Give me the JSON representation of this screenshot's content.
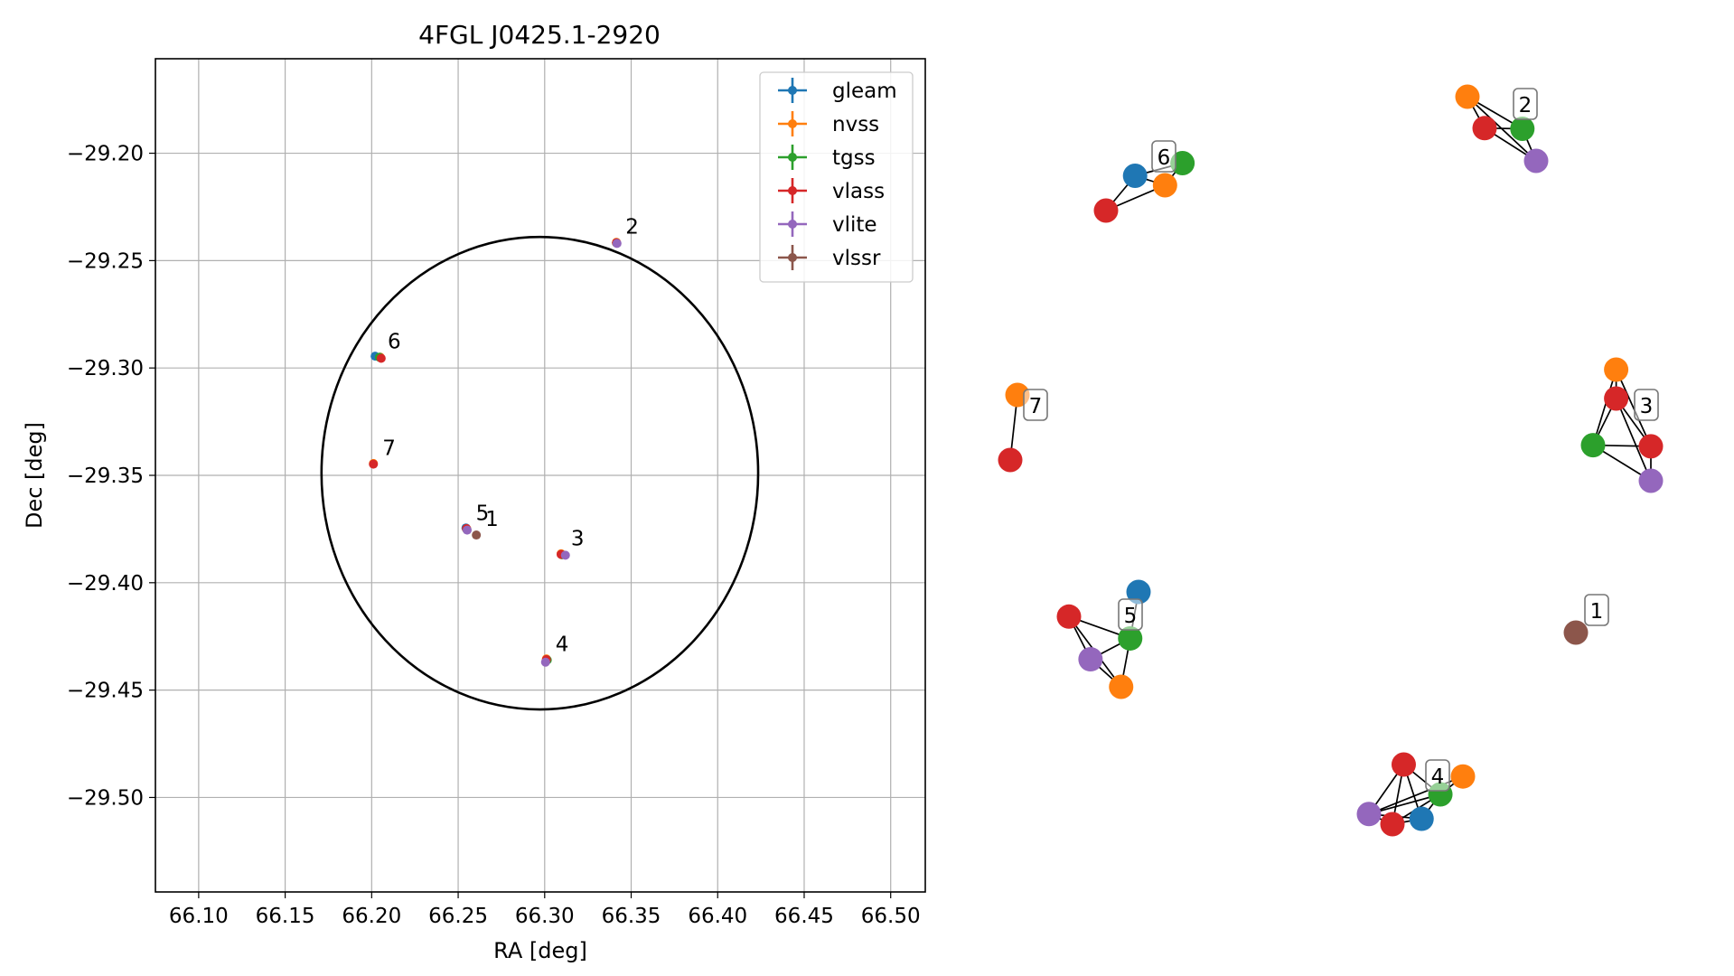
{
  "chart_data": [
    {
      "type": "scatter",
      "title": "4FGL J0425.1-2920",
      "xlabel": "RA [deg]",
      "ylabel": "Dec [deg]",
      "xlim": [
        66.075,
        66.52
      ],
      "ylim": [
        -29.544,
        -29.156
      ],
      "x_ticks": [
        66.1,
        66.15,
        66.2,
        66.25,
        66.3,
        66.35,
        66.4,
        66.45,
        66.5
      ],
      "x_tick_labels": [
        "66.10",
        "66.15",
        "66.20",
        "66.25",
        "66.30",
        "66.35",
        "66.40",
        "66.45",
        "66.50"
      ],
      "y_ticks": [
        -29.2,
        -29.25,
        -29.3,
        -29.35,
        -29.4,
        -29.45,
        -29.5
      ],
      "y_tick_labels": [
        "−29.20",
        "−29.25",
        "−29.30",
        "−29.35",
        "−29.40",
        "−29.45",
        "−29.50"
      ],
      "grid": true,
      "legend_position": "top-right",
      "circle": {
        "center_ra": 66.2972,
        "center_dec": -29.349,
        "radius_deg": 0.11,
        "color": "#000000"
      },
      "series": [
        {
          "name": "gleam",
          "color": "#1f77b4",
          "points": [
            {
              "x": 66.202,
              "y": -29.2945
            },
            {
              "x": 66.2545,
              "y": -29.3745
            }
          ]
        },
        {
          "name": "nvss",
          "color": "#ff7f0e",
          "points": [
            {
              "x": 66.205,
              "y": -29.295
            },
            {
              "x": 66.201,
              "y": -29.3445
            },
            {
              "x": 66.255,
              "y": -29.375
            },
            {
              "x": 66.3095,
              "y": -29.3865
            },
            {
              "x": 66.301,
              "y": -29.4355
            },
            {
              "x": 66.3415,
              "y": -29.2415
            }
          ]
        },
        {
          "name": "tgss",
          "color": "#2ca02c",
          "points": [
            {
              "x": 66.2045,
              "y": -29.295
            },
            {
              "x": 66.255,
              "y": -29.3752
            },
            {
              "x": 66.31,
              "y": -29.387
            },
            {
              "x": 66.3015,
              "y": -29.436
            },
            {
              "x": 66.3415,
              "y": -29.2418
            }
          ]
        },
        {
          "name": "vlass",
          "color": "#d62728",
          "points": [
            {
              "x": 66.2055,
              "y": -29.2955
            },
            {
              "x": 66.201,
              "y": -29.3448
            },
            {
              "x": 66.2548,
              "y": -29.3748
            },
            {
              "x": 66.3095,
              "y": -29.3868
            },
            {
              "x": 66.301,
              "y": -29.4358
            },
            {
              "x": 66.3415,
              "y": -29.2417
            }
          ]
        },
        {
          "name": "vlite",
          "color": "#9467bd",
          "points": [
            {
              "x": 66.2552,
              "y": -29.3755
            },
            {
              "x": 66.312,
              "y": -29.3872
            },
            {
              "x": 66.3005,
              "y": -29.437
            },
            {
              "x": 66.3418,
              "y": -29.242
            }
          ]
        },
        {
          "name": "vlssr",
          "color": "#8c564b",
          "points": [
            {
              "x": 66.2605,
              "y": -29.3778
            }
          ]
        }
      ],
      "annotations": [
        {
          "text": "2",
          "x": 66.3415,
          "y": -29.2417
        },
        {
          "text": "6",
          "x": 66.204,
          "y": -29.295
        },
        {
          "text": "7",
          "x": 66.201,
          "y": -29.3447
        },
        {
          "text": "5",
          "x": 66.255,
          "y": -29.375
        },
        {
          "text": "1",
          "x": 66.2605,
          "y": -29.3778
        },
        {
          "text": "3",
          "x": 66.31,
          "y": -29.3868
        },
        {
          "text": "4",
          "x": 66.301,
          "y": -29.436
        }
      ]
    },
    {
      "type": "network",
      "groups": [
        {
          "label": "6",
          "nodes": [
            {
              "c": "gleam",
              "x": 0.35,
              "y": 0.45
            },
            {
              "c": "nvss",
              "x": 0.71,
              "y": 0.6
            },
            {
              "c": "tgss",
              "x": 0.92,
              "y": 0.25
            },
            {
              "c": "vlass",
              "x": 0.0,
              "y": 1.0
            }
          ],
          "edges": [
            [
              0,
              1
            ],
            [
              0,
              3
            ],
            [
              1,
              2
            ],
            [
              1,
              3
            ],
            [
              0,
              2
            ]
          ]
        },
        {
          "label": "2",
          "nodes": [
            {
              "c": "nvss",
              "x": 0.0,
              "y": 0.0
            },
            {
              "c": "tgss",
              "x": 0.8,
              "y": 0.5
            },
            {
              "c": "vlass",
              "x": 0.25,
              "y": 0.49
            },
            {
              "c": "vlite",
              "x": 1.0,
              "y": 1.0
            }
          ],
          "edges": [
            [
              0,
              1
            ],
            [
              0,
              2
            ],
            [
              0,
              3
            ],
            [
              1,
              2
            ],
            [
              1,
              3
            ],
            [
              2,
              3
            ]
          ]
        },
        {
          "label": "7",
          "nodes": [
            {
              "c": "nvss",
              "x": 1.0,
              "y": 0.0
            },
            {
              "c": "vlass",
              "x": 0.0,
              "y": 1.0
            }
          ],
          "edges": [
            [
              0,
              1
            ]
          ]
        },
        {
          "label": "3",
          "nodes": [
            {
              "c": "nvss",
              "x": 0.4,
              "y": 0.0
            },
            {
              "c": "vlass",
              "x": 0.4,
              "y": 0.26
            },
            {
              "c": "tgss",
              "x": 0.0,
              "y": 0.68
            },
            {
              "c": "vlass",
              "x": 1.0,
              "y": 0.69
            },
            {
              "c": "vlite",
              "x": 1.0,
              "y": 1.0
            }
          ],
          "edges": [
            [
              0,
              1
            ],
            [
              0,
              2
            ],
            [
              0,
              3
            ],
            [
              1,
              2
            ],
            [
              1,
              3
            ],
            [
              1,
              4
            ],
            [
              2,
              3
            ],
            [
              2,
              4
            ],
            [
              3,
              4
            ]
          ]
        },
        {
          "label": "5",
          "nodes": [
            {
              "c": "gleam",
              "x": 1.0,
              "y": 0.0
            },
            {
              "c": "vlass",
              "x": 0.0,
              "y": 0.26
            },
            {
              "c": "tgss",
              "x": 0.88,
              "y": 0.49
            },
            {
              "c": "vlite",
              "x": 0.31,
              "y": 0.71
            },
            {
              "c": "nvss",
              "x": 0.75,
              "y": 1.0
            }
          ],
          "edges": [
            [
              0,
              2
            ],
            [
              1,
              2
            ],
            [
              1,
              3
            ],
            [
              2,
              3
            ],
            [
              2,
              4
            ],
            [
              3,
              4
            ],
            [
              1,
              4
            ]
          ]
        },
        {
          "label": "1",
          "nodes": [
            {
              "c": "vlssr",
              "x": 0.5,
              "y": 0.5
            }
          ],
          "edges": []
        },
        {
          "label": "4",
          "nodes": [
            {
              "c": "vlass",
              "x": 0.37,
              "y": 0.0
            },
            {
              "c": "nvss",
              "x": 1.0,
              "y": 0.2
            },
            {
              "c": "tgss",
              "x": 0.76,
              "y": 0.5
            },
            {
              "c": "vlite",
              "x": 0.0,
              "y": 0.83
            },
            {
              "c": "vlass",
              "x": 0.25,
              "y": 1.0
            },
            {
              "c": "gleam",
              "x": 0.56,
              "y": 0.91
            }
          ],
          "edges": [
            [
              0,
              2
            ],
            [
              0,
              3
            ],
            [
              0,
              4
            ],
            [
              0,
              5
            ],
            [
              1,
              2
            ],
            [
              1,
              3
            ],
            [
              2,
              3
            ],
            [
              2,
              4
            ],
            [
              2,
              5
            ],
            [
              3,
              4
            ],
            [
              3,
              5
            ],
            [
              4,
              5
            ]
          ]
        }
      ]
    }
  ]
}
